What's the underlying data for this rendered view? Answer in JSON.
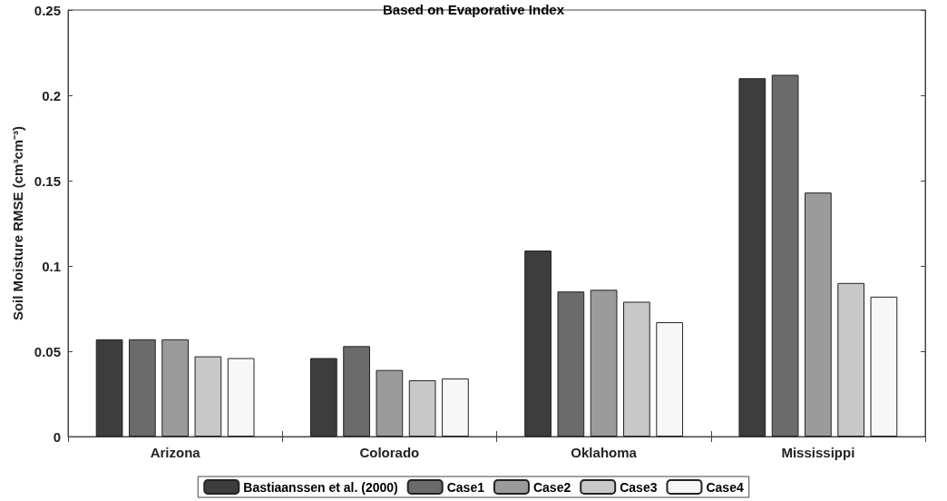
{
  "chart_data": {
    "type": "bar",
    "title": "Based on Evaporative Index",
    "ylabel": "Soil Moisture RMSE (cm³cm⁻³)",
    "categories": [
      "Arizona",
      "Colorado",
      "Oklahoma",
      "Mississippi"
    ],
    "series": [
      {
        "name": "Bastiaanssen et al. (2000)",
        "color": "#3d3d3d",
        "values": [
          0.057,
          0.046,
          0.109,
          0.21
        ]
      },
      {
        "name": "Case1",
        "color": "#6b6b6b",
        "values": [
          0.057,
          0.053,
          0.085,
          0.212
        ]
      },
      {
        "name": "Case2",
        "color": "#9b9b9b",
        "values": [
          0.057,
          0.039,
          0.086,
          0.143
        ]
      },
      {
        "name": "Case3",
        "color": "#c8c8c8",
        "values": [
          0.047,
          0.033,
          0.079,
          0.09
        ]
      },
      {
        "name": "Case4",
        "color": "#f7f7f7",
        "values": [
          0.046,
          0.034,
          0.067,
          0.082
        ]
      }
    ],
    "ylim": [
      0,
      0.25
    ],
    "yticks": [
      0,
      0.05,
      0.1,
      0.15,
      0.2,
      0.25
    ],
    "grid": false,
    "legend": "bottom"
  }
}
